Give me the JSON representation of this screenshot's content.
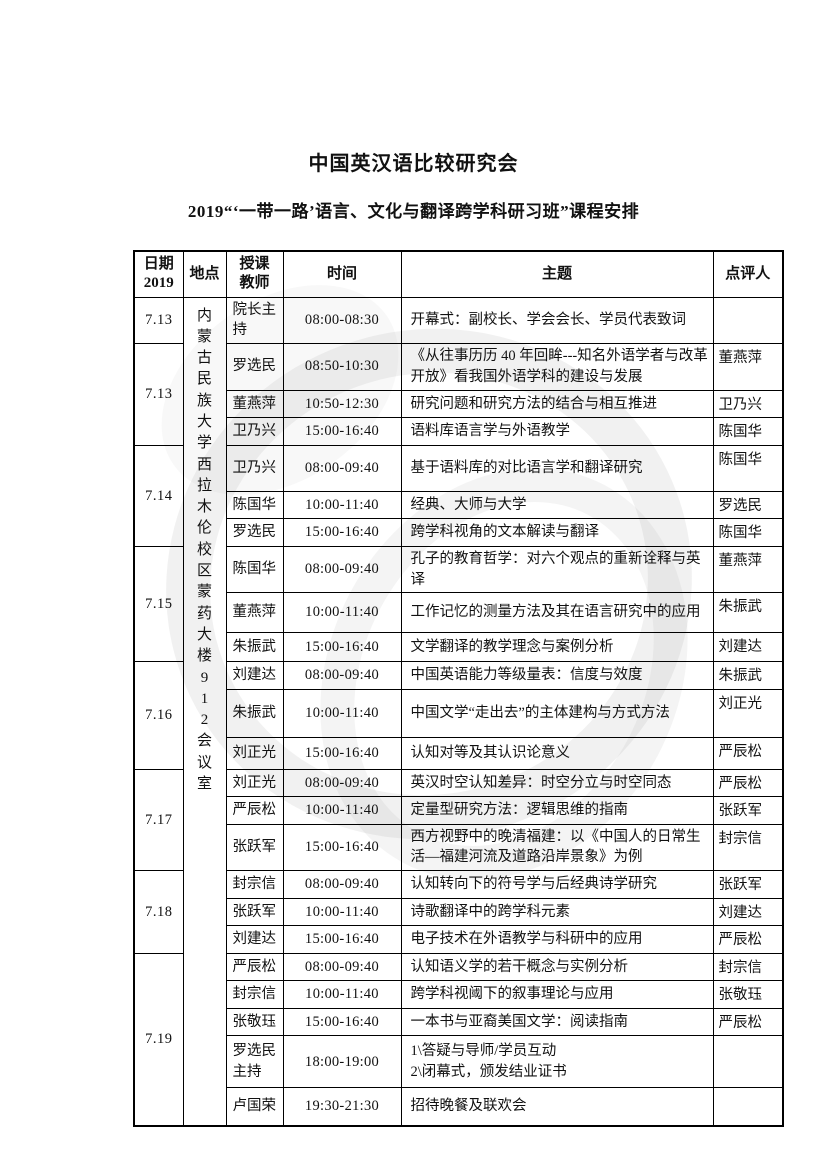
{
  "page": {
    "title": "中国英汉语比较研究会",
    "subtitle": "2019“‘一带一路’语言、文化与翻译跨学科研习班”课程安排"
  },
  "table": {
    "headers": {
      "date": "日期\n2019",
      "location": "地点",
      "teacher": "授课\n教师",
      "time": "时间",
      "topic": "主题",
      "reviewer": "点评人"
    },
    "location": "内蒙古民族大学西拉木伦校区蒙药大楼912会议室",
    "rows": [
      {
        "date": "7.13",
        "date_rowspan": 1,
        "teacher": "院长主持",
        "time": "08:00-08:30",
        "topic": "开幕式：副校长、学会会长、学员代表致词",
        "reviewer": ""
      },
      {
        "date": "7.13",
        "date_rowspan": 3,
        "teacher": "罗选民",
        "time": "08:50-10:30",
        "topic": "《从往事历历 40 年回眸---知名外语学者与改革开放》看我国外语学科的建设与发展",
        "reviewer": "董燕萍"
      },
      {
        "teacher": "董燕萍",
        "time": "10:50-12:30",
        "topic": "研究问题和研究方法的结合与相互推进",
        "reviewer": "卫乃兴"
      },
      {
        "teacher": "卫乃兴",
        "time": "15:00-16:40",
        "topic": "语料库语言学与外语教学",
        "reviewer": "陈国华"
      },
      {
        "date": "7.14",
        "date_rowspan": 3,
        "teacher": "卫乃兴",
        "time": "08:00-09:40",
        "topic": "基于语料库的对比语言学和翻译研究",
        "reviewer": "陈国华"
      },
      {
        "teacher": "陈国华",
        "time": "10:00-11:40",
        "topic": "经典、大师与大学",
        "reviewer": "罗选民"
      },
      {
        "teacher": "罗选民",
        "time": "15:00-16:40",
        "topic": "跨学科视角的文本解读与翻译",
        "reviewer": "陈国华"
      },
      {
        "date": "7.15",
        "date_rowspan": 3,
        "teacher": "陈国华",
        "time": "08:00-09:40",
        "topic": "孔子的教育哲学：对六个观点的重新诠释与英译",
        "reviewer": "董燕萍"
      },
      {
        "teacher": "董燕萍",
        "time": "10:00-11:40",
        "topic": "工作记忆的测量方法及其在语言研究中的应用",
        "reviewer": "朱振武"
      },
      {
        "teacher": "朱振武",
        "time": "15:00-16:40",
        "topic": "文学翻译的教学理念与案例分析",
        "reviewer": "刘建达"
      },
      {
        "date": "7.16",
        "date_rowspan": 3,
        "teacher": "刘建达",
        "time": "08:00-09:40",
        "topic": "中国英语能力等级量表：信度与效度",
        "reviewer": "朱振武"
      },
      {
        "teacher": "朱振武",
        "time": "10:00-11:40",
        "topic": "中国文学“走出去”的主体建构与方式方法",
        "reviewer": "刘正光"
      },
      {
        "teacher": "刘正光",
        "time": "15:00-16:40",
        "topic": "认知对等及其认识论意义",
        "reviewer": "严辰松"
      },
      {
        "date": "7.17",
        "date_rowspan": 3,
        "teacher": "刘正光",
        "time": "08:00-09:40",
        "topic": "英汉时空认知差异：时空分立与时空同态",
        "reviewer": "严辰松"
      },
      {
        "teacher": "严辰松",
        "time": "10:00-11:40",
        "topic": "定量型研究方法：逻辑思维的指南",
        "reviewer": "张跃军"
      },
      {
        "teacher": "张跃军",
        "time": "15:00-16:40",
        "topic": "西方视野中的晚清福建：以《中国人的日常生活—福建河流及道路沿岸景象》为例",
        "reviewer": "封宗信"
      },
      {
        "date": "7.18",
        "date_rowspan": 3,
        "teacher": "封宗信",
        "time": "08:00-09:40",
        "topic": "认知转向下的符号学与后经典诗学研究",
        "reviewer": "张跃军"
      },
      {
        "teacher": "张跃军",
        "time": "10:00-11:40",
        "topic": "诗歌翻译中的跨学科元素",
        "reviewer": "刘建达"
      },
      {
        "teacher": "刘建达",
        "time": "15:00-16:40",
        "topic": "电子技术在外语教学与科研中的应用",
        "reviewer": "严辰松"
      },
      {
        "date": "7.19",
        "date_rowspan": 5,
        "teacher": "严辰松",
        "time": "08:00-09:40",
        "topic": "认知语义学的若干概念与实例分析",
        "reviewer": "封宗信"
      },
      {
        "teacher": "封宗信",
        "time": "10:00-11:40",
        "topic": "跨学科视阈下的叙事理论与应用",
        "reviewer": "张敬珏"
      },
      {
        "teacher": "张敬珏",
        "time": "15:00-16:40",
        "topic": "一本书与亚裔美国文学：阅读指南",
        "reviewer": "严辰松"
      },
      {
        "teacher": "罗选民主持",
        "time": "18:00-19:00",
        "topic": "1\\答疑与导师/学员互动\n2\\闭幕式，颁发结业证书",
        "reviewer": ""
      },
      {
        "teacher": "卢国荣",
        "time": "19:30-21:30",
        "topic": "招待晚餐及联欢会",
        "reviewer": ""
      }
    ]
  }
}
